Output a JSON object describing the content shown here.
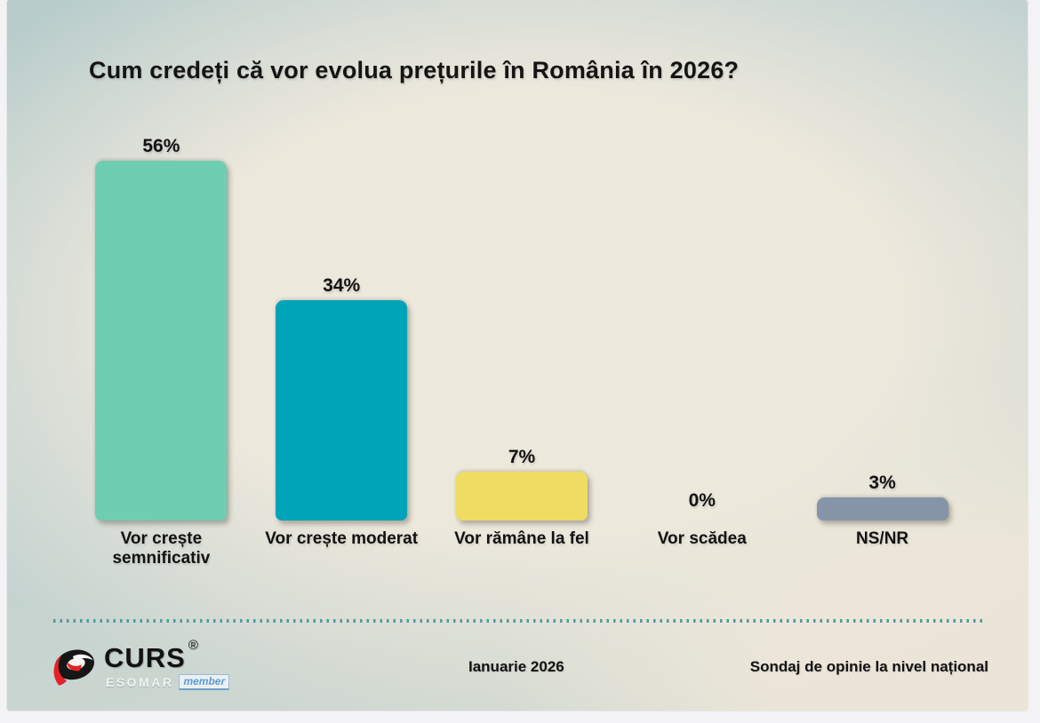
{
  "chart_data": {
    "type": "bar",
    "title": "Cum credeți că vor evolua prețurile în România în 2026?",
    "categories": [
      "Vor crește semnificativ",
      "Vor crește moderat",
      "Vor rămâne la fel",
      "Vor scădea",
      "NS/NR"
    ],
    "values": [
      56,
      34,
      7,
      0,
      3
    ],
    "value_labels": [
      "56%",
      "34%",
      "7%",
      "0%",
      "3%"
    ],
    "bar_colors": [
      "#6fceb2",
      "#00a4b8",
      "#eedd62",
      null,
      "#8694a8"
    ],
    "xlabel": "",
    "ylabel": "",
    "ylim": [
      0,
      60
    ],
    "grid": false,
    "legend": false,
    "data_labels": "above-bars"
  },
  "footer": {
    "brand": "CURS",
    "registered_mark": "®",
    "esomar": "ESOMAR",
    "member": "member",
    "date": "Ianuarie 2026",
    "note": "Sondaj de opinie la nivel național"
  },
  "colors": {
    "background_center": "#ede8dc",
    "background_edge": "#b7cccb",
    "divider_dots": "#4f9aa0",
    "text": "#121212",
    "logo_black": "#161616",
    "logo_red": "#e32227"
  }
}
